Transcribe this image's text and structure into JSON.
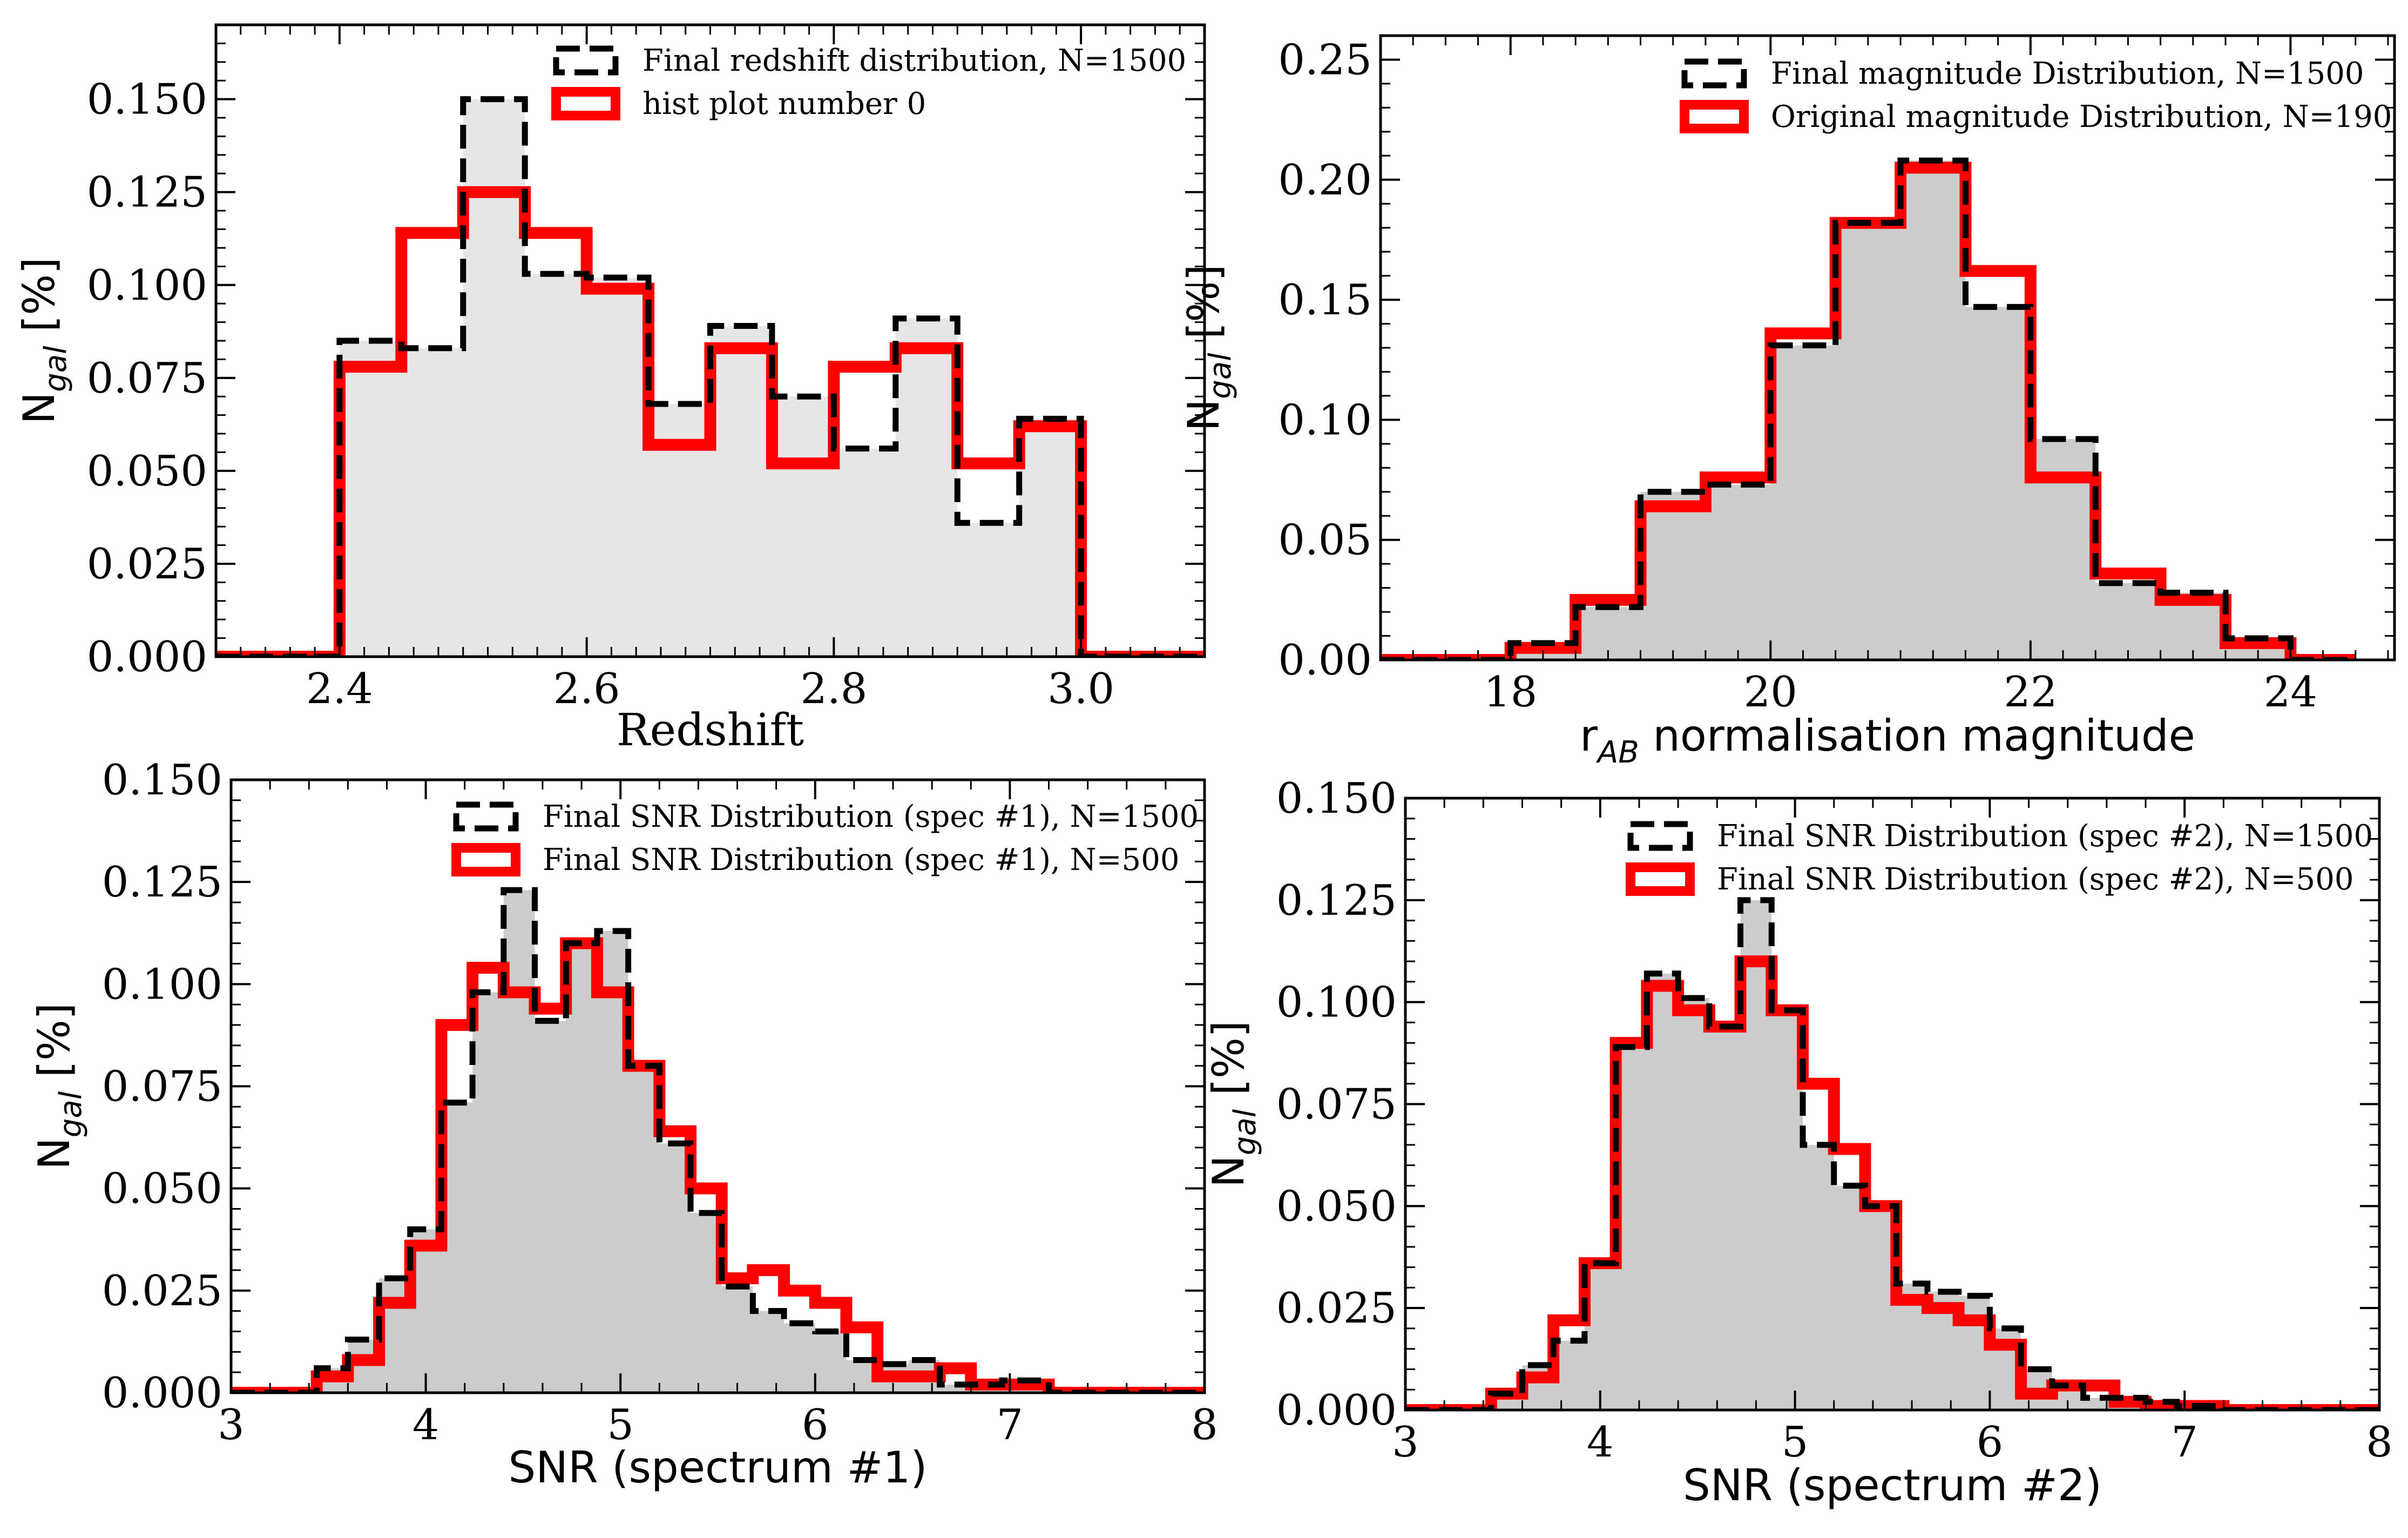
{
  "chart_data": [
    {
      "type": "histogram",
      "xlabel": "Redshift",
      "ylabel": {
        "main": "N",
        "sub": "gal",
        "tail": " [%]"
      },
      "xlim": [
        2.3,
        3.1
      ],
      "ylim": [
        0,
        0.17
      ],
      "xticks": [
        2.4,
        2.6,
        2.8,
        3.0
      ],
      "xtick_labels": [
        "2.4",
        "2.6",
        "2.8",
        "3.0"
      ],
      "yticks": [
        0,
        0.025,
        0.05,
        0.075,
        0.1,
        0.125,
        0.15
      ],
      "ytick_labels": [
        "0.000",
        "0.025",
        "0.050",
        "0.075",
        "0.100",
        "0.125",
        "0.150"
      ],
      "minor_xtick_step": 0.02,
      "minor_ytick_step": 0.005,
      "fill_color": "#e6e6e6",
      "legend_loc": "upper right",
      "series": [
        {
          "name": "Final redshift distribution, N=1500",
          "style": "dashed",
          "color": "#000000",
          "bin_edges": [
            2.3,
            2.35,
            2.4,
            2.45,
            2.5,
            2.55,
            2.6,
            2.65,
            2.7,
            2.75,
            2.8,
            2.85,
            2.9,
            2.95,
            3.0,
            3.05,
            3.1
          ],
          "values": [
            0,
            0,
            0.085,
            0.083,
            0.15,
            0.103,
            0.102,
            0.068,
            0.089,
            0.07,
            0.056,
            0.091,
            0.036,
            0.064,
            0,
            0
          ]
        },
        {
          "name": "hist plot number 0",
          "style": "solid",
          "color": "#ff0000",
          "bin_edges": [
            2.3,
            2.35,
            2.4,
            2.45,
            2.5,
            2.55,
            2.6,
            2.65,
            2.7,
            2.75,
            2.8,
            2.85,
            2.9,
            2.95,
            3.0,
            3.05,
            3.1
          ],
          "values": [
            0,
            0,
            0.078,
            0.114,
            0.125,
            0.114,
            0.099,
            0.057,
            0.083,
            0.052,
            0.078,
            0.083,
            0.052,
            0.062,
            0,
            0
          ]
        }
      ]
    },
    {
      "type": "histogram",
      "xlabel": {
        "main": "r",
        "sub": "AB",
        "tail": " normalisation magnitude"
      },
      "ylabel": {
        "main": "N",
        "sub": "gal",
        "tail": " [%]"
      },
      "xlim": [
        17,
        24.8
      ],
      "ylim": [
        0,
        0.26
      ],
      "xticks": [
        18,
        20,
        22,
        24
      ],
      "xtick_labels": [
        "18",
        "20",
        "22",
        "24"
      ],
      "yticks": [
        0,
        0.05,
        0.1,
        0.15,
        0.2,
        0.25
      ],
      "ytick_labels": [
        "0.00",
        "0.05",
        "0.10",
        "0.15",
        "0.20",
        "0.25"
      ],
      "minor_xtick_step": 0.25,
      "minor_ytick_step": 0.01,
      "fill_color": "#cccccc",
      "legend_loc": "upper right",
      "series": [
        {
          "name": "Final magnitude Distribution, N=1500",
          "style": "dashed",
          "color": "#000000",
          "bin_edges": [
            17,
            17.5,
            18,
            18.5,
            19,
            19.5,
            20,
            20.5,
            21,
            21.5,
            22,
            22.5,
            23,
            23.5,
            24,
            24.5
          ],
          "values": [
            0,
            0,
            0.007,
            0.022,
            0.07,
            0.073,
            0.131,
            0.182,
            0.208,
            0.147,
            0.092,
            0.032,
            0.028,
            0.009,
            0
          ]
        },
        {
          "name": "Original magnitude Distribution, N=190",
          "style": "solid",
          "color": "#ff0000",
          "bin_edges": [
            17,
            17.5,
            18,
            18.5,
            19,
            19.5,
            20,
            20.5,
            21,
            21.5,
            22,
            22.5,
            23,
            23.5,
            24,
            24.5
          ],
          "values": [
            0,
            0,
            0.005,
            0.025,
            0.064,
            0.076,
            0.136,
            0.182,
            0.205,
            0.162,
            0.076,
            0.036,
            0.025,
            0.007,
            0
          ]
        }
      ]
    },
    {
      "type": "histogram",
      "xlabel": "SNR (spectrum #1)",
      "ylabel": {
        "main": "N",
        "sub": "gal",
        "tail": " [%]"
      },
      "xlim": [
        3,
        8
      ],
      "ylim": [
        0,
        0.15
      ],
      "xticks": [
        3,
        4,
        5,
        6,
        7,
        8
      ],
      "xtick_labels": [
        "3",
        "4",
        "5",
        "6",
        "7",
        "8"
      ],
      "yticks": [
        0,
        0.025,
        0.05,
        0.075,
        0.1,
        0.125,
        0.15
      ],
      "ytick_labels": [
        "0.000",
        "0.025",
        "0.050",
        "0.075",
        "0.100",
        "0.125",
        "0.150"
      ],
      "minor_xtick_step": 0.2,
      "minor_ytick_step": 0.005,
      "fill_color": "#cccccc",
      "legend_loc": "upper right",
      "series": [
        {
          "name": "Final SNR Distribution (spec #1), N=1500",
          "style": "dashed",
          "color": "#000000",
          "bin_edges": [
            3,
            3.2,
            3.44,
            3.6,
            3.76,
            3.92,
            4.08,
            4.24,
            4.4,
            4.56,
            4.72,
            4.88,
            5.04,
            5.2,
            5.36,
            5.52,
            5.68,
            5.84,
            6.0,
            6.16,
            6.32,
            6.48,
            6.64,
            6.8,
            6.96,
            7.2,
            8
          ],
          "values": [
            0,
            0,
            0.006,
            0.013,
            0.028,
            0.04,
            0.071,
            0.098,
            0.123,
            0.091,
            0.11,
            0.113,
            0.08,
            0.061,
            0.044,
            0.026,
            0.02,
            0.017,
            0.015,
            0.008,
            0.007,
            0.008,
            0.002,
            0.002,
            0.003,
            0
          ]
        },
        {
          "name": "Final SNR Distribution (spec #1), N=500",
          "style": "solid",
          "color": "#ff0000",
          "bin_edges": [
            3,
            3.2,
            3.44,
            3.6,
            3.76,
            3.92,
            4.08,
            4.24,
            4.4,
            4.56,
            4.72,
            4.88,
            5.04,
            5.2,
            5.36,
            5.52,
            5.68,
            5.84,
            6.0,
            6.16,
            6.32,
            6.48,
            6.64,
            6.8,
            6.96,
            7.2,
            8
          ],
          "values": [
            0,
            0,
            0.004,
            0.008,
            0.022,
            0.036,
            0.09,
            0.104,
            0.098,
            0.094,
            0.11,
            0.098,
            0.08,
            0.064,
            0.05,
            0.028,
            0.03,
            0.025,
            0.022,
            0.016,
            0.004,
            0.004,
            0.006,
            0.002,
            0.002,
            0
          ]
        }
      ]
    },
    {
      "type": "histogram",
      "xlabel": "SNR (spectrum #2)",
      "ylabel": {
        "main": "N",
        "sub": "gal",
        "tail": " [%]"
      },
      "xlim": [
        3,
        8
      ],
      "ylim": [
        0,
        0.15
      ],
      "xticks": [
        3,
        4,
        5,
        6,
        7,
        8
      ],
      "xtick_labels": [
        "3",
        "4",
        "5",
        "6",
        "7",
        "8"
      ],
      "yticks": [
        0,
        0.025,
        0.05,
        0.075,
        0.1,
        0.125,
        0.15
      ],
      "ytick_labels": [
        "0.000",
        "0.025",
        "0.050",
        "0.075",
        "0.100",
        "0.125",
        "0.150"
      ],
      "minor_xtick_step": 0.2,
      "minor_ytick_step": 0.005,
      "fill_color": "#cccccc",
      "legend_loc": "upper right",
      "series": [
        {
          "name": "Final SNR Distribution (spec #2), N=1500",
          "style": "dashed",
          "color": "#000000",
          "bin_edges": [
            3,
            3.2,
            3.44,
            3.6,
            3.76,
            3.92,
            4.08,
            4.24,
            4.4,
            4.56,
            4.72,
            4.88,
            5.04,
            5.2,
            5.36,
            5.52,
            5.68,
            5.84,
            6.0,
            6.16,
            6.32,
            6.48,
            6.64,
            6.8,
            6.96,
            7.2,
            8
          ],
          "values": [
            0,
            0,
            0.004,
            0.011,
            0.017,
            0.036,
            0.089,
            0.107,
            0.101,
            0.094,
            0.125,
            0.098,
            0.065,
            0.055,
            0.05,
            0.031,
            0.029,
            0.028,
            0.02,
            0.01,
            0.006,
            0.003,
            0.003,
            0.002,
            0.001,
            0
          ]
        },
        {
          "name": "Final SNR Distribution (spec #2), N=500",
          "style": "solid",
          "color": "#ff0000",
          "bin_edges": [
            3,
            3.2,
            3.44,
            3.6,
            3.76,
            3.92,
            4.08,
            4.24,
            4.4,
            4.56,
            4.72,
            4.88,
            5.04,
            5.2,
            5.36,
            5.52,
            5.68,
            5.84,
            6.0,
            6.16,
            6.32,
            6.48,
            6.64,
            6.8,
            6.96,
            7.2,
            8
          ],
          "values": [
            0,
            0,
            0.004,
            0.008,
            0.022,
            0.036,
            0.09,
            0.104,
            0.098,
            0.094,
            0.11,
            0.098,
            0.08,
            0.064,
            0.05,
            0.027,
            0.025,
            0.022,
            0.016,
            0.004,
            0.006,
            0.006,
            0.002,
            0.001,
            0.001,
            0
          ]
        }
      ]
    }
  ]
}
